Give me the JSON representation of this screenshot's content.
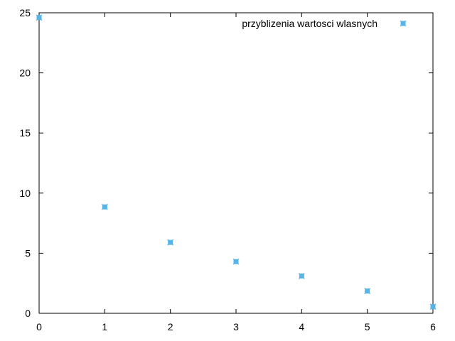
{
  "chart_data": {
    "type": "scatter",
    "title": "",
    "xlabel": "",
    "ylabel": "",
    "xlim": [
      0,
      6
    ],
    "ylim": [
      0,
      25
    ],
    "xticks": [
      "0",
      "1",
      "2",
      "3",
      "4",
      "5",
      "6"
    ],
    "yticks": [
      "0",
      "5",
      "10",
      "15",
      "20",
      "25"
    ],
    "grid": false,
    "legend_position": "top-right",
    "series": [
      {
        "name": "przyblizenia wartosci wlasnych",
        "color": "#56b4e9",
        "marker": "cross-box",
        "x": [
          0,
          1,
          2,
          3,
          4,
          5,
          6
        ],
        "y": [
          24.6,
          8.85,
          5.9,
          4.3,
          3.1,
          1.85,
          0.55
        ]
      }
    ]
  }
}
